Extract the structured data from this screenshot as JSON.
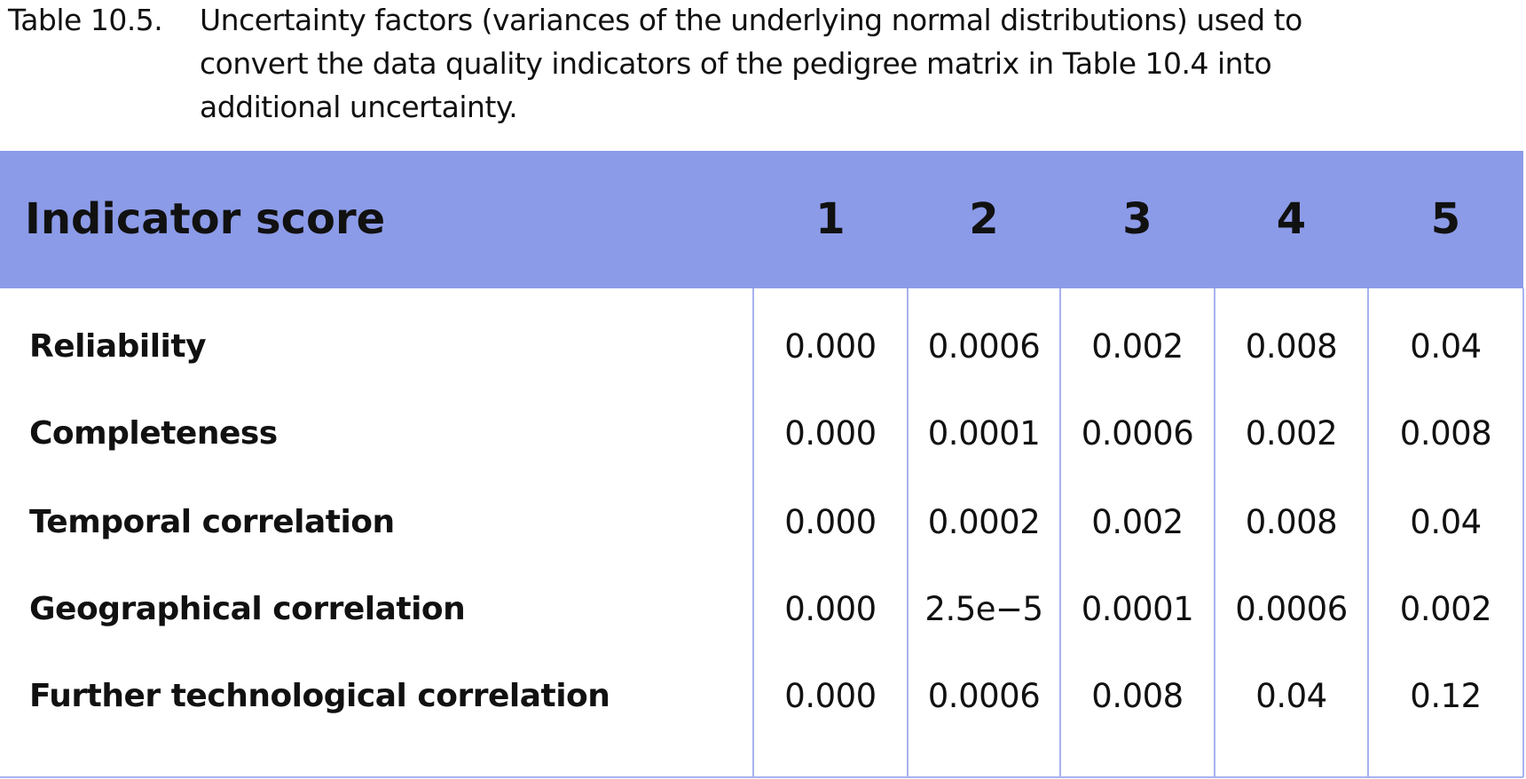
{
  "caption": {
    "label": "Table 10.5.",
    "lines": [
      "Uncertainty factors (variances of the underlying normal distributions) used to",
      "convert the data quality indicators of the pedigree matrix in Table 10.4 into",
      "additional uncertainty."
    ]
  },
  "table": {
    "header": [
      "Indicator score",
      "1",
      "2",
      "3",
      "4",
      "5"
    ],
    "rows": [
      [
        "Reliability",
        "0.000",
        "0.0006",
        "0.002",
        "0.008",
        "0.04"
      ],
      [
        "Completeness",
        "0.000",
        "0.0001",
        "0.0006",
        "0.002",
        "0.008"
      ],
      [
        "Temporal correlation",
        "0.000",
        "0.0002",
        "0.002",
        "0.008",
        "0.04"
      ],
      [
        "Geographical correlation",
        "0.000",
        "2.5e−5",
        "0.0001",
        "0.0006",
        "0.002"
      ],
      [
        "Further technological correlation",
        "0.000",
        "0.0006",
        "0.008",
        "0.04",
        "0.12"
      ]
    ]
  }
}
